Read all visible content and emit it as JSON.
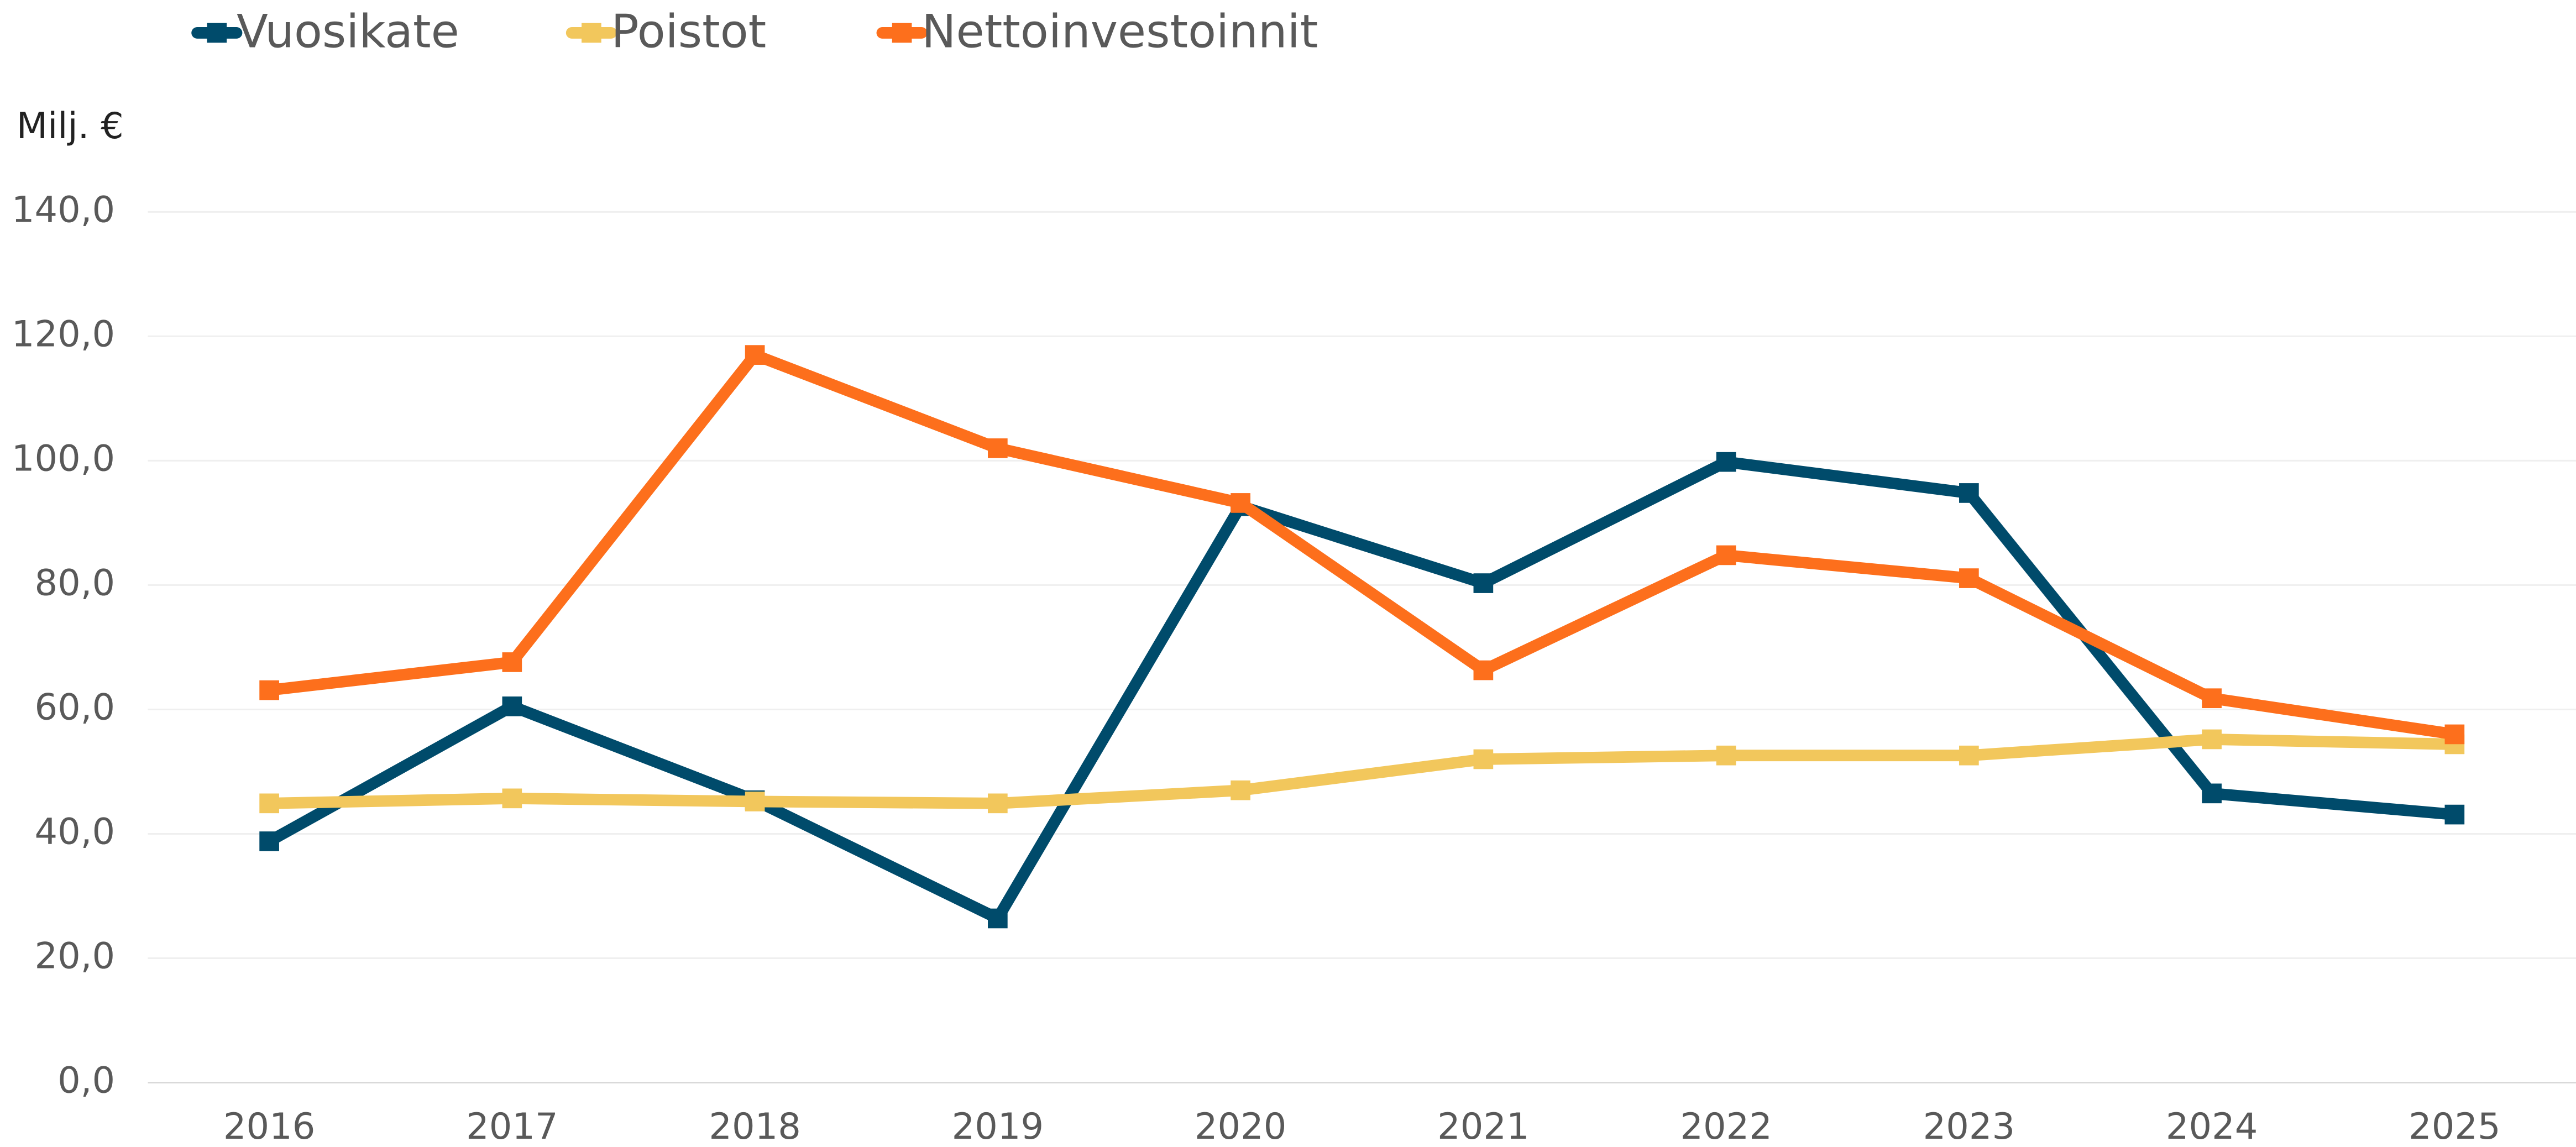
{
  "chart_data": {
    "type": "line",
    "y_axis_label": "Milj. €",
    "categories": [
      "2016",
      "2017",
      "2018",
      "2019",
      "2020",
      "2021",
      "2022",
      "2023",
      "2024",
      "2025"
    ],
    "series": [
      {
        "name": "Vuosikate",
        "color": "#004b6b",
        "values": [
          38.8,
          60.5,
          45.4,
          26.4,
          92.7,
          80.3,
          99.8,
          94.8,
          46.5,
          43.1
        ]
      },
      {
        "name": "Poistot",
        "color": "#f2c75c",
        "values": [
          44.9,
          45.7,
          45.2,
          44.9,
          47.0,
          52.0,
          52.6,
          52.6,
          55.2,
          54.4
        ]
      },
      {
        "name": "Nettoinvestoinnit",
        "color": "#fd6f1c",
        "values": [
          63.1,
          67.6,
          117.0,
          102.0,
          93.2,
          66.3,
          84.8,
          81.1,
          61.8,
          56.0
        ]
      }
    ],
    "ylim": [
      0,
      140
    ],
    "yticks": [
      {
        "value": 0,
        "label": "0,0"
      },
      {
        "value": 20,
        "label": "20,0"
      },
      {
        "value": 40,
        "label": "40,0"
      },
      {
        "value": 60,
        "label": "60,0"
      },
      {
        "value": 80,
        "label": "80,0"
      },
      {
        "value": 100,
        "label": "100,0"
      },
      {
        "value": 120,
        "label": "120,0"
      },
      {
        "value": 140,
        "label": "140,0"
      }
    ],
    "grid": true,
    "legend": "top"
  }
}
